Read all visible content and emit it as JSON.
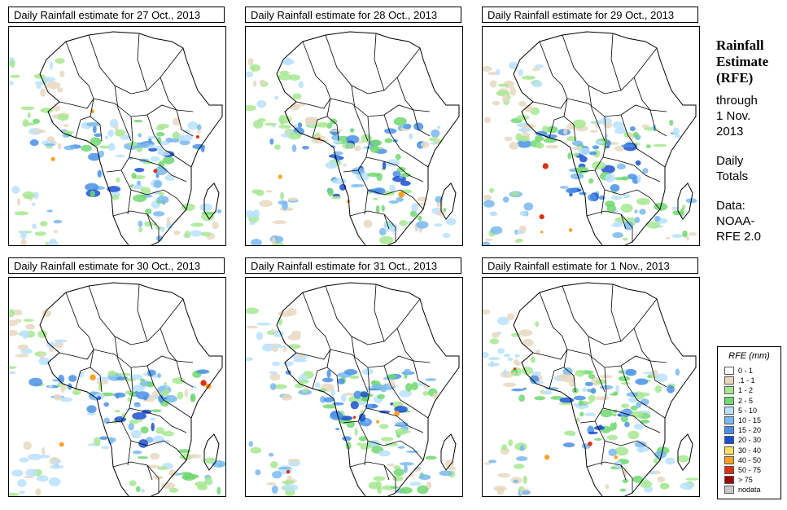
{
  "panels": [
    {
      "title": "Daily Rainfall estimate for  27 Oct., 2013"
    },
    {
      "title": "Daily Rainfall estimate for  28 Oct., 2013"
    },
    {
      "title": "Daily Rainfall estimate for  29 Oct., 2013"
    },
    {
      "title": "Daily Rainfall estimate for  30 Oct., 2013"
    },
    {
      "title": "Daily Rainfall estimate for  31 Oct., 2013"
    },
    {
      "title": "Daily Rainfall estimate for  1 Nov., 2013"
    }
  ],
  "side": {
    "title_line1": "Rainfall",
    "title_line2": "Estimate",
    "title_line3": "(RFE)",
    "through": "through",
    "date_line1": "1 Nov.",
    "date_line2": "2013",
    "daily_line1": "Daily",
    "daily_line2": "Totals",
    "data_label": "Data:",
    "data_line1": "NOAA-",
    "data_line2": "RFE 2.0"
  },
  "legend": {
    "title": "RFE (mm)",
    "items": [
      {
        "label": "0 - 1",
        "color": "#ffffff"
      },
      {
        "label": ".1 - 1",
        "color": "#e8d8c0"
      },
      {
        "label": "1 - 2",
        "color": "#a6e890"
      },
      {
        "label": "2 - 5",
        "color": "#70d870"
      },
      {
        "label": "5 - 10",
        "color": "#b8e0ff"
      },
      {
        "label": "10 - 15",
        "color": "#78b8f0"
      },
      {
        "label": "15 - 20",
        "color": "#4a90e8"
      },
      {
        "label": "20 - 30",
        "color": "#1a50d0"
      },
      {
        "label": "30 - 40",
        "color": "#ffe060"
      },
      {
        "label": "40 - 50",
        "color": "#ffa020"
      },
      {
        "label": "50 - 75",
        "color": "#e03010"
      },
      {
        "label": "> 75",
        "color": "#a00000"
      },
      {
        "label": "nodata",
        "color": "#c8c8c8"
      }
    ]
  }
}
